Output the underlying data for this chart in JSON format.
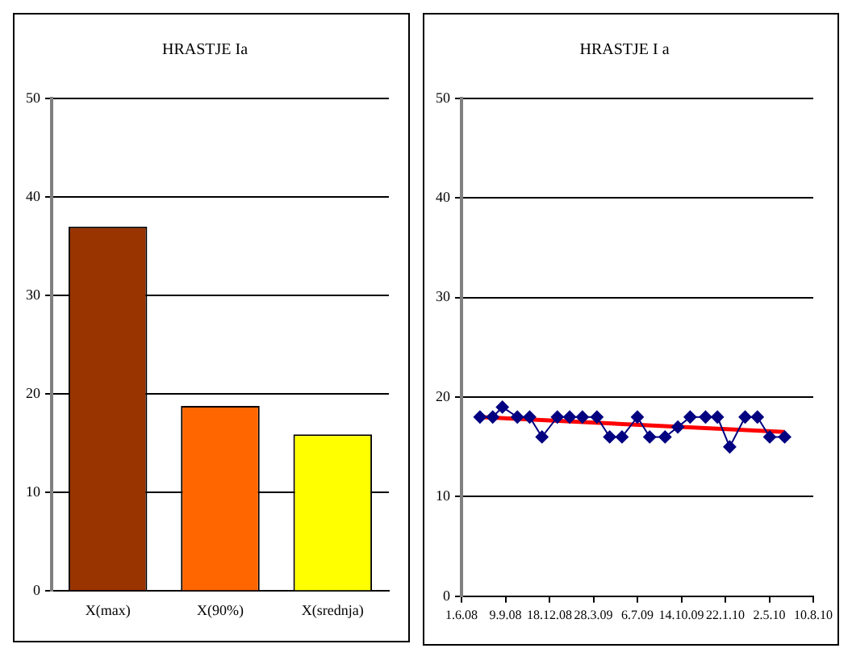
{
  "chart_data": [
    {
      "type": "bar",
      "title": "HRASTJE Ia",
      "categories": [
        "X(max)",
        "X(90%)",
        "X(srednja)"
      ],
      "values": [
        37,
        18.8,
        15.9
      ],
      "colors": [
        "#993300",
        "#ff6600",
        "#ffff00"
      ],
      "ylim": [
        0,
        50
      ],
      "yticks": [
        0,
        10,
        20,
        30,
        40,
        50
      ],
      "grid": "y",
      "legend": false
    },
    {
      "type": "line",
      "title": "HRASTJE I a",
      "xlim": [
        "2008-06-01",
        "2010-08-10"
      ],
      "xticks": [
        {
          "value": "2008-06-01",
          "label": "1.6.08"
        },
        {
          "value": "2008-09-09",
          "label": "9.9.08"
        },
        {
          "value": "2008-12-18",
          "label": "18.12.08"
        },
        {
          "value": "2009-03-28",
          "label": "28.3.09"
        },
        {
          "value": "2009-07-06",
          "label": "6.7.09"
        },
        {
          "value": "2009-10-14",
          "label": "14.10.09"
        },
        {
          "value": "2010-01-22",
          "label": "22.1.10"
        },
        {
          "value": "2010-05-02",
          "label": "2.5.10"
        },
        {
          "value": "2010-08-10",
          "label": "10.8.10"
        }
      ],
      "ylim": [
        0,
        50
      ],
      "yticks": [
        0,
        10,
        20,
        30,
        40,
        50
      ],
      "grid": "y",
      "legend": false,
      "series": [
        {
          "color": "#000080",
          "marker": "diamond",
          "x": [
            "2008-07-13",
            "2008-08-11",
            "2008-09-02",
            "2008-10-06",
            "2008-11-03",
            "2008-12-01",
            "2009-01-05",
            "2009-02-02",
            "2009-03-03",
            "2009-04-05",
            "2009-05-04",
            "2009-06-01",
            "2009-07-06",
            "2009-08-03",
            "2009-09-07",
            "2009-10-06",
            "2009-11-03",
            "2009-12-08",
            "2010-01-04",
            "2010-02-01",
            "2010-03-08",
            "2010-04-05",
            "2010-05-03",
            "2010-06-06"
          ],
          "values": [
            18,
            18,
            19,
            18,
            18,
            16,
            18,
            18,
            18,
            18,
            16,
            16,
            18,
            16,
            16,
            17,
            18,
            18,
            18,
            15,
            18,
            18,
            16,
            16
          ]
        },
        {
          "type": "line",
          "color": "#ff0000",
          "marker": "none",
          "x": [
            "2008-07-13",
            "2010-06-06"
          ],
          "values": [
            18,
            16.5
          ]
        }
      ]
    }
  ]
}
